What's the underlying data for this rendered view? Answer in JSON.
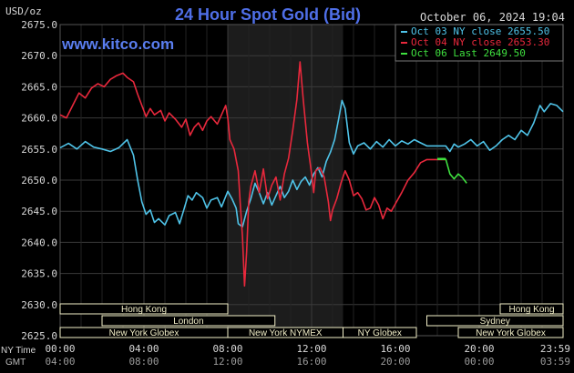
{
  "header": {
    "ylabel": "USD/oz",
    "title": "24 Hour Spot Gold (Bid)",
    "timestamp": "October 06, 2024 19:04",
    "watermark": "www.kitco.com"
  },
  "legend": [
    {
      "label": "Oct 03 NY close 2655.50",
      "color": "#4fc3e8"
    },
    {
      "label": "Oct 04 NY close 2653.30",
      "color": "#e8283c"
    },
    {
      "label": "Oct 06 Last 2649.50",
      "color": "#3fe03f"
    }
  ],
  "colors": {
    "background": "#000000",
    "grid": "#3a3a3a",
    "axis_text": "#d8d8d8",
    "title": "#4f6fe8",
    "watermark": "#5a7ef0",
    "shade": "#1c1c1c",
    "session_bar": "#f2efc8"
  },
  "sessions": {
    "row1": [
      {
        "label": "Hong Kong",
        "start": 0.0,
        "end": 8.0
      },
      {
        "label": "Hong Kong",
        "start": 21.0,
        "end": 24.0
      }
    ],
    "row2": [
      {
        "label": "London",
        "start": 2.0,
        "end": 10.25
      },
      {
        "label": "Sydney",
        "start": 17.5,
        "end": 24.0
      }
    ],
    "row3": [
      {
        "label": "New York Globex",
        "start": 0.0,
        "end": 8.0
      },
      {
        "label": "New York NYMEX",
        "start": 8.0,
        "end": 13.5
      },
      {
        "label": "NY Globex",
        "start": 13.5,
        "end": 17.0
      },
      {
        "label": "New York Globex",
        "start": 19.0,
        "end": 24.0
      }
    ]
  },
  "time_rows": {
    "ny_label": "NY Time",
    "gmt_label": "GMT",
    "ny_ticks": [
      "00:00",
      "04:00",
      "08:00",
      "12:00",
      "16:00",
      "20:00",
      "23:59"
    ],
    "gmt_ticks": [
      "04:00",
      "08:00",
      "12:00",
      "16:00",
      "20:00",
      "00:00",
      "03:59"
    ]
  },
  "chart_data": {
    "type": "line",
    "title": "24 Hour Spot Gold (Bid)",
    "ylabel": "USD/oz",
    "xlabel": "NY Time",
    "x_unit": "hours (NY time)",
    "xlim": [
      0,
      24
    ],
    "ylim": [
      2625,
      2675
    ],
    "y_ticks": [
      "2625.0",
      "2630.0",
      "2635.0",
      "2640.0",
      "2645.0",
      "2650.0",
      "2655.0",
      "2660.0",
      "2665.0",
      "2670.0",
      "2675.0"
    ],
    "shaded_region": [
      8,
      13.5
    ],
    "grid": true,
    "legend_position": "top-right",
    "series": [
      {
        "name": "Oct 03",
        "color": "#4fc3e8",
        "points": [
          [
            0,
            2655.2
          ],
          [
            0.4,
            2655.9
          ],
          [
            0.8,
            2655.0
          ],
          [
            1.2,
            2656.2
          ],
          [
            1.6,
            2655.3
          ],
          [
            2.0,
            2655.0
          ],
          [
            2.4,
            2654.6
          ],
          [
            2.8,
            2655.2
          ],
          [
            3.2,
            2656.5
          ],
          [
            3.5,
            2654.0
          ],
          [
            3.7,
            2650.0
          ],
          [
            3.9,
            2646.5
          ],
          [
            4.1,
            2644.5
          ],
          [
            4.3,
            2645.2
          ],
          [
            4.5,
            2643.2
          ],
          [
            4.7,
            2643.8
          ],
          [
            5.0,
            2642.8
          ],
          [
            5.2,
            2644.3
          ],
          [
            5.5,
            2644.8
          ],
          [
            5.7,
            2643.0
          ],
          [
            5.9,
            2645.2
          ],
          [
            6.1,
            2647.5
          ],
          [
            6.3,
            2646.8
          ],
          [
            6.5,
            2648.0
          ],
          [
            6.8,
            2647.2
          ],
          [
            7.0,
            2645.5
          ],
          [
            7.2,
            2646.8
          ],
          [
            7.5,
            2647.2
          ],
          [
            7.7,
            2645.7
          ],
          [
            8.0,
            2648.2
          ],
          [
            8.2,
            2647.0
          ],
          [
            8.4,
            2645.5
          ],
          [
            8.5,
            2643.0
          ],
          [
            8.7,
            2642.5
          ],
          [
            8.9,
            2645.0
          ],
          [
            9.1,
            2647.0
          ],
          [
            9.3,
            2649.5
          ],
          [
            9.5,
            2648.0
          ],
          [
            9.7,
            2646.2
          ],
          [
            9.9,
            2648.0
          ],
          [
            10.1,
            2646.0
          ],
          [
            10.3,
            2647.5
          ],
          [
            10.5,
            2649.0
          ],
          [
            10.7,
            2647.2
          ],
          [
            10.9,
            2648.2
          ],
          [
            11.1,
            2650.0
          ],
          [
            11.3,
            2648.5
          ],
          [
            11.5,
            2649.8
          ],
          [
            11.7,
            2650.5
          ],
          [
            11.9,
            2649.2
          ],
          [
            12.1,
            2651.0
          ],
          [
            12.3,
            2652.0
          ],
          [
            12.5,
            2650.5
          ],
          [
            12.7,
            2653.0
          ],
          [
            12.9,
            2654.5
          ],
          [
            13.1,
            2656.5
          ],
          [
            13.3,
            2660.0
          ],
          [
            13.45,
            2662.8
          ],
          [
            13.6,
            2661.5
          ],
          [
            13.8,
            2656.0
          ],
          [
            14.0,
            2654.2
          ],
          [
            14.2,
            2655.5
          ],
          [
            14.5,
            2656.0
          ],
          [
            14.8,
            2655.0
          ],
          [
            15.1,
            2656.2
          ],
          [
            15.4,
            2655.3
          ],
          [
            15.7,
            2656.5
          ],
          [
            16.0,
            2655.5
          ],
          [
            16.3,
            2656.3
          ],
          [
            16.6,
            2655.8
          ],
          [
            16.9,
            2656.5
          ],
          [
            17.2,
            2656.0
          ],
          [
            17.5,
            2655.5
          ],
          [
            18.0,
            2655.5
          ],
          [
            18.4,
            2655.5
          ],
          [
            18.6,
            2654.6
          ],
          [
            18.8,
            2655.8
          ],
          [
            19.0,
            2655.3
          ],
          [
            19.3,
            2655.8
          ],
          [
            19.6,
            2656.5
          ],
          [
            19.9,
            2655.5
          ],
          [
            20.2,
            2656.2
          ],
          [
            20.5,
            2654.8
          ],
          [
            20.8,
            2655.5
          ],
          [
            21.1,
            2656.5
          ],
          [
            21.4,
            2657.2
          ],
          [
            21.7,
            2656.5
          ],
          [
            22.0,
            2658.0
          ],
          [
            22.3,
            2657.2
          ],
          [
            22.6,
            2659.2
          ],
          [
            22.9,
            2662.0
          ],
          [
            23.1,
            2661.0
          ],
          [
            23.4,
            2662.3
          ],
          [
            23.7,
            2662.0
          ],
          [
            24.0,
            2661.0
          ]
        ]
      },
      {
        "name": "Oct 04",
        "color": "#e8283c",
        "points": [
          [
            0,
            2660.5
          ],
          [
            0.3,
            2660.0
          ],
          [
            0.6,
            2662.0
          ],
          [
            0.9,
            2664.0
          ],
          [
            1.2,
            2663.2
          ],
          [
            1.5,
            2664.8
          ],
          [
            1.8,
            2665.5
          ],
          [
            2.1,
            2665.0
          ],
          [
            2.4,
            2666.2
          ],
          [
            2.7,
            2666.8
          ],
          [
            3.0,
            2667.2
          ],
          [
            3.2,
            2666.5
          ],
          [
            3.5,
            2665.8
          ],
          [
            3.7,
            2663.8
          ],
          [
            3.9,
            2662.0
          ],
          [
            4.1,
            2660.2
          ],
          [
            4.3,
            2661.5
          ],
          [
            4.5,
            2660.5
          ],
          [
            4.8,
            2661.2
          ],
          [
            5.0,
            2659.5
          ],
          [
            5.2,
            2660.8
          ],
          [
            5.5,
            2659.8
          ],
          [
            5.8,
            2658.5
          ],
          [
            6.0,
            2659.8
          ],
          [
            6.2,
            2657.2
          ],
          [
            6.4,
            2658.5
          ],
          [
            6.6,
            2659.2
          ],
          [
            6.8,
            2658.0
          ],
          [
            7.0,
            2659.5
          ],
          [
            7.2,
            2660.2
          ],
          [
            7.5,
            2659.0
          ],
          [
            7.7,
            2660.5
          ],
          [
            7.9,
            2662.0
          ],
          [
            8.0,
            2660.0
          ],
          [
            8.1,
            2656.5
          ],
          [
            8.3,
            2655.0
          ],
          [
            8.5,
            2651.5
          ],
          [
            8.6,
            2646.0
          ],
          [
            8.7,
            2641.0
          ],
          [
            8.8,
            2633.0
          ],
          [
            8.9,
            2638.5
          ],
          [
            9.0,
            2646.5
          ],
          [
            9.1,
            2649.0
          ],
          [
            9.3,
            2651.5
          ],
          [
            9.5,
            2648.0
          ],
          [
            9.7,
            2651.8
          ],
          [
            9.9,
            2647.0
          ],
          [
            10.1,
            2649.2
          ],
          [
            10.3,
            2650.5
          ],
          [
            10.5,
            2646.8
          ],
          [
            10.7,
            2651.0
          ],
          [
            10.9,
            2653.5
          ],
          [
            11.1,
            2658.0
          ],
          [
            11.3,
            2663.0
          ],
          [
            11.45,
            2669.0
          ],
          [
            11.6,
            2663.0
          ],
          [
            11.8,
            2656.0
          ],
          [
            12.0,
            2651.0
          ],
          [
            12.1,
            2648.0
          ],
          [
            12.2,
            2651.5
          ],
          [
            12.4,
            2652.0
          ],
          [
            12.6,
            2650.5
          ],
          [
            12.8,
            2646.5
          ],
          [
            12.9,
            2643.5
          ],
          [
            13.0,
            2645.2
          ],
          [
            13.2,
            2647.0
          ],
          [
            13.4,
            2649.5
          ],
          [
            13.6,
            2651.5
          ],
          [
            13.8,
            2650.0
          ],
          [
            14.0,
            2647.5
          ],
          [
            14.2,
            2648.0
          ],
          [
            14.4,
            2647.0
          ],
          [
            14.6,
            2645.2
          ],
          [
            14.8,
            2645.5
          ],
          [
            15.0,
            2647.2
          ],
          [
            15.2,
            2646.0
          ],
          [
            15.4,
            2643.8
          ],
          [
            15.6,
            2645.5
          ],
          [
            15.8,
            2645.0
          ],
          [
            16.0,
            2646.2
          ],
          [
            16.3,
            2648.0
          ],
          [
            16.6,
            2650.0
          ],
          [
            16.9,
            2651.2
          ],
          [
            17.2,
            2652.8
          ],
          [
            17.5,
            2653.3
          ],
          [
            18.0,
            2653.3
          ],
          [
            18.4,
            2653.3
          ]
        ]
      },
      {
        "name": "Oct 06",
        "color": "#3fe03f",
        "points": [
          [
            18.4,
            2653.4
          ],
          [
            18.6,
            2651.0
          ],
          [
            18.8,
            2650.2
          ],
          [
            19.0,
            2651.0
          ],
          [
            19.2,
            2650.4
          ],
          [
            19.4,
            2649.5
          ]
        ]
      }
    ]
  }
}
